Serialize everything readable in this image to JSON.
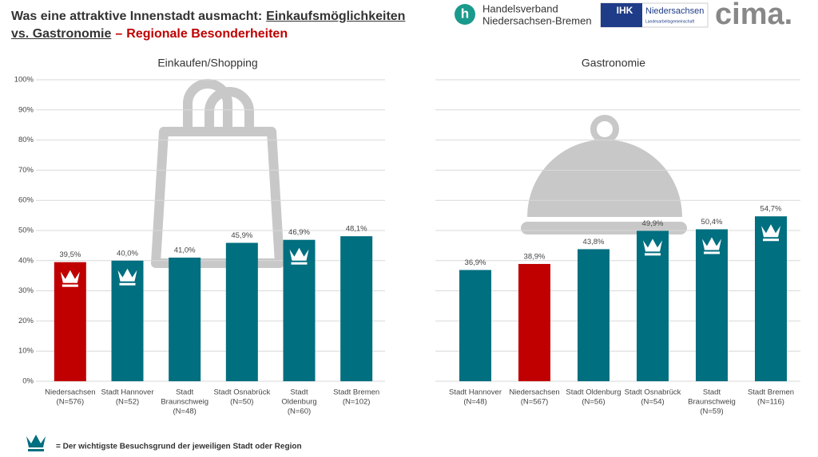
{
  "header": {
    "title_line1_a": "Was eine attraktive Innenstadt ausmacht:",
    "title_line1_b": "Einkaufsmöglichkeiten",
    "title_line2_a": "vs. Gastronomie",
    "title_line2_dash": "–",
    "title_line2_red": "Regionale Besonderheiten"
  },
  "logos": {
    "hv_line1": "Handelsverband",
    "hv_line2": "Niedersachsen-Bremen",
    "ihk": "IHK",
    "ihk_name": "Niedersachsen",
    "ihk_sub": "Landesarbeitsgemeinschaft",
    "cima": "cima."
  },
  "legend": {
    "text": "= Der wichtigste Besuchsgrund der jeweiligen Stadt oder Region"
  },
  "chart_data": [
    {
      "type": "bar",
      "title": "Einkaufen/Shopping",
      "categories": [
        [
          "Niedersachsen",
          "(N=576)"
        ],
        [
          "Stadt Hannover",
          "(N=52)"
        ],
        [
          "Stadt",
          "Braunschweig",
          "(N=48)"
        ],
        [
          "Stadt Osnabrück",
          "(N=50)"
        ],
        [
          "Stadt",
          "Oldenburg",
          "(N=60)"
        ],
        [
          "Stadt Bremen",
          "(N=102)"
        ]
      ],
      "values": [
        39.5,
        40.0,
        41.0,
        45.9,
        46.9,
        48.1
      ],
      "value_labels": [
        "39,5%",
        "40,0%",
        "41,0%",
        "45,9%",
        "46,9%",
        "48,1%"
      ],
      "colors": [
        "#c00000",
        "#006f7f",
        "#006f7f",
        "#006f7f",
        "#006f7f",
        "#006f7f"
      ],
      "crowns": [
        true,
        true,
        false,
        false,
        true,
        false
      ],
      "ylim": [
        0,
        100
      ],
      "yticks": [
        {
          "value": 0,
          "label": "0%"
        },
        {
          "value": 10,
          "label": "10%"
        },
        {
          "value": 20,
          "label": "20%"
        },
        {
          "value": 30,
          "label": "30%"
        },
        {
          "value": 40,
          "label": "40%"
        },
        {
          "value": 50,
          "label": "50%"
        },
        {
          "value": 60,
          "label": "60%"
        },
        {
          "value": 70,
          "label": "70%"
        },
        {
          "value": 80,
          "label": "80%"
        },
        {
          "value": 90,
          "label": "90%"
        },
        {
          "value": 100,
          "label": "100%"
        }
      ],
      "grid": true
    },
    {
      "type": "bar",
      "title": "Gastronomie",
      "categories": [
        [
          "Stadt Hannover",
          "(N=48)"
        ],
        [
          "Niedersachsen",
          "(N=567)"
        ],
        [
          "Stadt Oldenburg",
          "(N=56)"
        ],
        [
          "Stadt Osnabrück",
          "(N=54)"
        ],
        [
          "Stadt",
          "Braunschweig",
          "(N=59)"
        ],
        [
          "Stadt Bremen",
          "(N=116)"
        ]
      ],
      "values": [
        36.9,
        38.9,
        43.8,
        49.9,
        50.4,
        54.7
      ],
      "value_labels": [
        "36,9%",
        "38,9%",
        "43,8%",
        "49,9%",
        "50,4%",
        "54,7%"
      ],
      "colors": [
        "#006f7f",
        "#c00000",
        "#006f7f",
        "#006f7f",
        "#006f7f",
        "#006f7f"
      ],
      "crowns": [
        false,
        false,
        false,
        true,
        true,
        true
      ],
      "ylim": [
        0,
        100
      ],
      "yticks": [
        0,
        10,
        20,
        30,
        40,
        50,
        60,
        70,
        80,
        90,
        100
      ],
      "grid": true
    }
  ]
}
